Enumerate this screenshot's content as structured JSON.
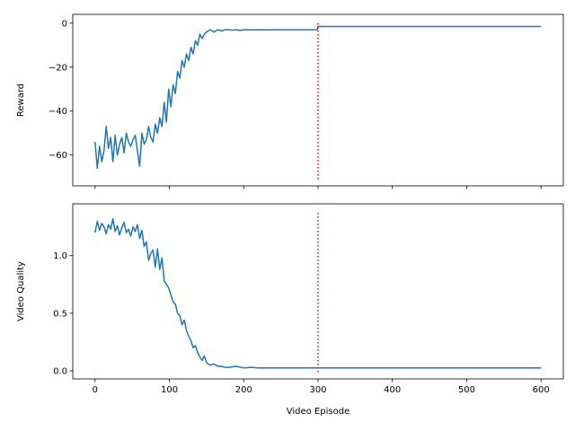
{
  "chart_data": [
    {
      "type": "line",
      "xlabel": "",
      "ylabel": "Reward",
      "xlim": [
        -30,
        630
      ],
      "ylim": [
        -74,
        4
      ],
      "xticks": [
        0,
        100,
        200,
        300,
        400,
        500,
        600
      ],
      "xtick_labels": [
        "",
        "",
        "",
        "",
        "",
        "",
        ""
      ],
      "yticks": [
        0,
        -20,
        -40,
        -60
      ],
      "ytick_labels": [
        "0",
        "−20",
        "−40",
        "−60"
      ],
      "series": [
        {
          "color": "#1f77b4",
          "x": [
            0,
            3,
            6,
            9,
            12,
            15,
            18,
            21,
            24,
            27,
            30,
            33,
            36,
            39,
            42,
            45,
            48,
            51,
            54,
            57,
            60,
            63,
            66,
            69,
            72,
            75,
            78,
            81,
            84,
            87,
            90,
            93,
            96,
            99,
            102,
            105,
            108,
            111,
            114,
            117,
            120,
            123,
            126,
            129,
            132,
            135,
            138,
            141,
            144,
            147,
            150,
            155,
            160,
            165,
            170,
            175,
            180,
            185,
            190,
            195,
            200,
            210,
            220,
            230,
            240,
            250,
            260,
            270,
            280,
            290,
            299,
            300,
            320,
            350,
            400,
            450,
            500,
            550,
            600
          ],
          "y": [
            -54,
            -66,
            -56,
            -63,
            -58,
            -47,
            -57,
            -52,
            -63,
            -51,
            -60,
            -55,
            -52,
            -59,
            -50,
            -54,
            -56,
            -53,
            -51,
            -58,
            -65,
            -50,
            -55,
            -53,
            -47,
            -52,
            -54,
            -46,
            -50,
            -43,
            -47,
            -36,
            -45,
            -30,
            -38,
            -28,
            -32,
            -22,
            -25,
            -17,
            -20,
            -14,
            -17,
            -11,
            -14,
            -8,
            -10,
            -5,
            -7,
            -5,
            -4,
            -3,
            -4,
            -3,
            -3.5,
            -3,
            -3,
            -3.2,
            -3,
            -3.3,
            -3,
            -3.1,
            -3,
            -3.1,
            -3,
            -3,
            -3,
            -3,
            -3,
            -3,
            -3,
            -1.5,
            -1.5,
            -1.5,
            -1.5,
            -1.5,
            -1.5,
            -1.5,
            -1.5
          ]
        }
      ],
      "vline": {
        "x": 300,
        "color": "#ff0000",
        "style": "dotted"
      }
    },
    {
      "type": "line",
      "xlabel": "Video Episode",
      "ylabel": "Video Quality",
      "xlim": [
        -30,
        630
      ],
      "ylim": [
        -0.07,
        1.45
      ],
      "xticks": [
        0,
        100,
        200,
        300,
        400,
        500,
        600
      ],
      "xtick_labels": [
        "0",
        "100",
        "200",
        "300",
        "400",
        "500",
        "600"
      ],
      "yticks": [
        0.0,
        0.5,
        1.0
      ],
      "ytick_labels": [
        "0.0",
        "0.5",
        "1.0"
      ],
      "series": [
        {
          "color": "#1f77b4",
          "x": [
            0,
            3,
            6,
            9,
            12,
            15,
            18,
            21,
            24,
            27,
            30,
            33,
            36,
            39,
            42,
            45,
            48,
            51,
            54,
            57,
            60,
            63,
            66,
            69,
            72,
            75,
            78,
            81,
            84,
            87,
            90,
            93,
            96,
            99,
            102,
            105,
            108,
            111,
            114,
            117,
            120,
            123,
            126,
            129,
            132,
            135,
            138,
            141,
            144,
            147,
            150,
            155,
            160,
            165,
            170,
            175,
            180,
            190,
            200,
            210,
            220,
            230,
            240,
            250,
            260,
            270,
            280,
            290,
            299,
            300,
            320,
            350,
            400,
            450,
            500,
            550,
            600
          ],
          "y": [
            1.2,
            1.3,
            1.22,
            1.28,
            1.25,
            1.19,
            1.27,
            1.23,
            1.32,
            1.21,
            1.26,
            1.18,
            1.24,
            1.29,
            1.2,
            1.23,
            1.17,
            1.25,
            1.21,
            1.27,
            1.15,
            1.22,
            1.08,
            1.12,
            0.96,
            1.02,
            1.05,
            0.9,
            1.06,
            0.88,
            0.98,
            0.78,
            0.75,
            0.72,
            0.66,
            0.6,
            0.58,
            0.5,
            0.48,
            0.4,
            0.44,
            0.35,
            0.3,
            0.26,
            0.2,
            0.22,
            0.16,
            0.12,
            0.09,
            0.13,
            0.07,
            0.05,
            0.06,
            0.04,
            0.04,
            0.03,
            0.03,
            0.04,
            0.025,
            0.03,
            0.025,
            0.025,
            0.025,
            0.025,
            0.025,
            0.025,
            0.025,
            0.025,
            0.025,
            0.025,
            0.025,
            0.025,
            0.025,
            0.025,
            0.025,
            0.025,
            0.025
          ]
        }
      ],
      "vline": {
        "x": 300,
        "color": "#ff0000",
        "style": "dotted"
      }
    }
  ]
}
